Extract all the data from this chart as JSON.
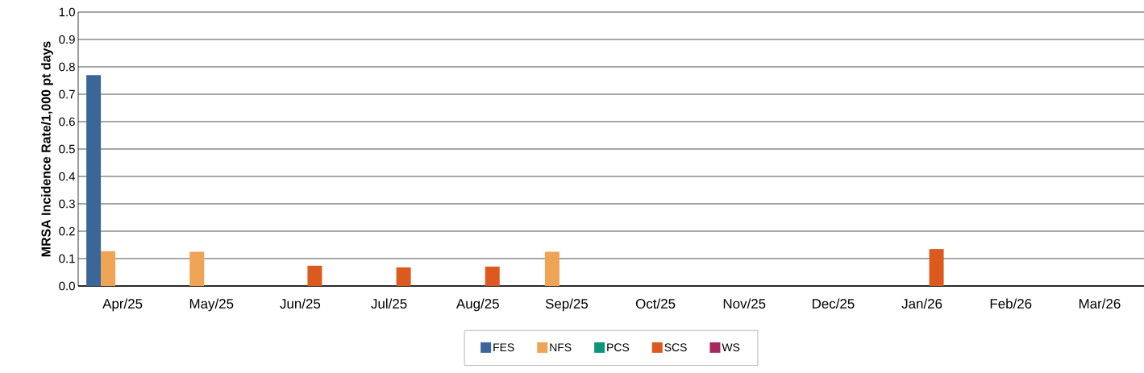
{
  "chart_data": {
    "type": "bar",
    "ylabel": "MRSA Incidence Rate/1,000 pt days",
    "categories": [
      "Apr/25",
      "May/25",
      "Jun/25",
      "Jul/25",
      "Aug/25",
      "Sep/25",
      "Oct/25",
      "Nov/25",
      "Dec/25",
      "Jan/26",
      "Feb/26",
      "Mar/26"
    ],
    "series": [
      {
        "name": "FES",
        "color": "#3a6699",
        "values": [
          0.77,
          0,
          0,
          0,
          0,
          0,
          0,
          0,
          0,
          0,
          0,
          0
        ]
      },
      {
        "name": "NFS",
        "color": "#eea355",
        "values": [
          0.127,
          0.125,
          0,
          0,
          0,
          0.125,
          0,
          0,
          0,
          0,
          0,
          0
        ]
      },
      {
        "name": "PCS",
        "color": "#0d9675",
        "values": [
          0,
          0,
          0,
          0,
          0,
          0,
          0,
          0,
          0,
          0,
          0,
          0
        ]
      },
      {
        "name": "SCS",
        "color": "#dc5a1e",
        "values": [
          0,
          0,
          0.074,
          0.068,
          0.071,
          0,
          0,
          0,
          0,
          0.135,
          0,
          0
        ]
      },
      {
        "name": "WS",
        "color": "#a3295e",
        "values": [
          0,
          0,
          0,
          0,
          0,
          0,
          0,
          0,
          0,
          0,
          0,
          0
        ]
      }
    ],
    "ylim": [
      0,
      1
    ],
    "yticks": [
      {
        "value": 0,
        "label": "0.0"
      },
      0.1,
      0.2,
      0.3,
      0.4,
      0.5,
      0.6,
      0.7,
      0.8,
      0.9,
      {
        "value": 1,
        "label": "1.0"
      }
    ],
    "grid": "y",
    "legend": "bottom"
  }
}
